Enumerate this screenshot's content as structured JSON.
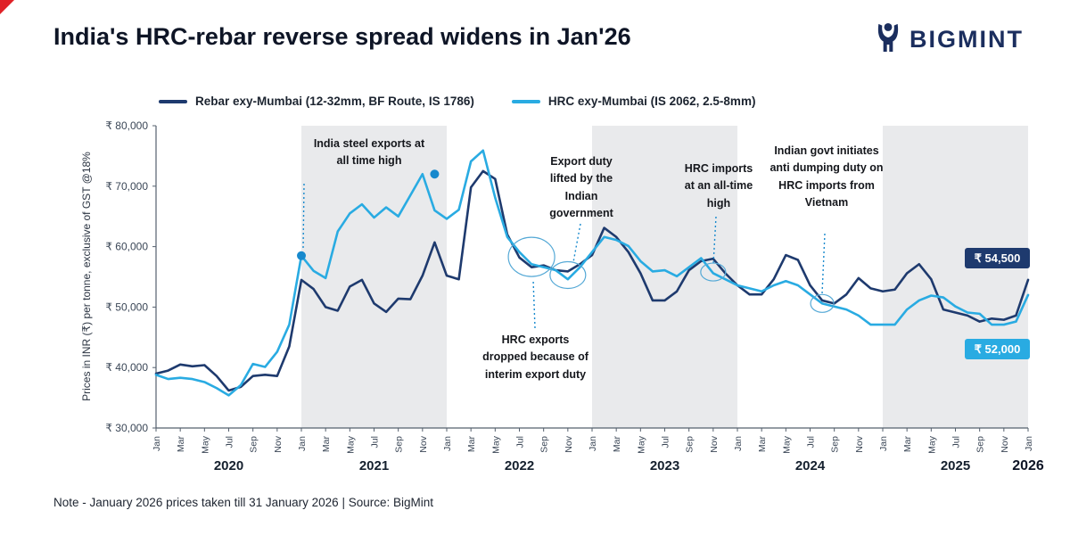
{
  "header": {
    "title": "India's HRC-rebar reverse spread widens in Jan'26",
    "logo_text": "BIGMINT"
  },
  "note": "Note - January 2026 prices taken till  31 January 2026  |  Source: BigMint",
  "colors": {
    "rebar": "#1e3a6e",
    "hrc": "#29abe2",
    "band": "#e9eaec",
    "accent_red": "#e02127",
    "dot": "#1789cd"
  },
  "chart_data": {
    "type": "line",
    "title": "India's HRC-rebar reverse spread widens in Jan'26",
    "xlabel": "",
    "ylabel": "Prices in INR (₹) per tonne, exclusive of GST @18%",
    "ylim": [
      30000,
      80000
    ],
    "x_start": "Jan 2020",
    "x_end": "Jan 2026",
    "years": [
      "2020",
      "2021",
      "2022",
      "2023",
      "2024",
      "2025",
      "2026"
    ],
    "x_tick_months": [
      "Jan",
      "Mar",
      "May",
      "Jul",
      "Sep",
      "Nov"
    ],
    "shaded_years": [
      "2021",
      "2023",
      "2025"
    ],
    "y_ticks": [
      {
        "value": 30000,
        "label": "₹ 30,000"
      },
      {
        "value": 40000,
        "label": "₹ 40,000"
      },
      {
        "value": 50000,
        "label": "₹ 50,000"
      },
      {
        "value": 60000,
        "label": "₹ 60,000"
      },
      {
        "value": 70000,
        "label": "₹ 70,000"
      },
      {
        "value": 80000,
        "label": "₹ 80,000"
      }
    ],
    "series": [
      {
        "name": "Rebar exy-Mumbai (12-32mm, BF Route, IS 1786)",
        "color": "#1e3a6e",
        "values": [
          39000,
          39500,
          40500,
          40200,
          40400,
          38600,
          36200,
          36800,
          38600,
          38800,
          38600,
          43500,
          54500,
          53000,
          50000,
          49400,
          53400,
          54500,
          50600,
          49200,
          51400,
          51300,
          55200,
          60700,
          55200,
          54600,
          69800,
          72500,
          71200,
          62000,
          58200,
          56600,
          56900,
          56100,
          55900,
          57100,
          58600,
          63100,
          61600,
          59100,
          55600,
          51100,
          51100,
          52600,
          56100,
          57600,
          58000,
          55600,
          53600,
          52100,
          52100,
          54600,
          58600,
          57800,
          53600,
          51100,
          50600,
          52100,
          54800,
          53100,
          52600,
          52900,
          55600,
          57100,
          54600,
          49600,
          49100,
          48600,
          47600,
          48100,
          47900,
          48600,
          54500
        ]
      },
      {
        "name": "HRC exy-Mumbai (IS 2062, 2.5-8mm)",
        "color": "#29abe2",
        "values": [
          38800,
          38100,
          38300,
          38100,
          37600,
          36600,
          35400,
          37100,
          40600,
          40100,
          42600,
          47100,
          58500,
          56000,
          54800,
          62500,
          65500,
          67000,
          64800,
          66500,
          65000,
          68500,
          72000,
          66000,
          64600,
          66100,
          74100,
          75900,
          68100,
          61600,
          59100,
          57100,
          56600,
          56100,
          54600,
          56600,
          59100,
          61600,
          61100,
          60100,
          57600,
          55900,
          56100,
          55100,
          56600,
          58100,
          55600,
          54600,
          53600,
          53100,
          52600,
          53600,
          54300,
          53600,
          52100,
          50600,
          50100,
          49600,
          48600,
          47100,
          47100,
          47100,
          49600,
          51100,
          51900,
          51600,
          50100,
          49100,
          48900,
          47100,
          47100,
          47600,
          52000
        ]
      }
    ],
    "end_labels": {
      "rebar": "₹ 54,500",
      "hrc": "₹ 52,000"
    },
    "annotations": [
      {
        "text": "India steel exports at all time high",
        "markers": [
          {
            "type": "dot",
            "i": 12,
            "v": 58500
          },
          {
            "type": "dot",
            "i": 23,
            "v": 72000
          }
        ]
      },
      {
        "text": "Export duty lifted by the Indian government",
        "markers": [
          {
            "type": "ellipse",
            "i": 34,
            "v": 55300,
            "rx": 20,
            "ry": 15
          }
        ]
      },
      {
        "text": "HRC imports at an all-time high",
        "markers": [
          {
            "type": "ellipse",
            "i": 46,
            "v": 55800,
            "rx": 14,
            "ry": 10
          }
        ]
      },
      {
        "text": "Indian govt initiates anti dumping duty on HRC imports from Vietnam",
        "markers": [
          {
            "type": "ellipse",
            "i": 55,
            "v": 50600,
            "rx": 13,
            "ry": 10
          }
        ]
      },
      {
        "text": "HRC exports dropped because of interim export duty",
        "markers": [
          {
            "type": "ellipse",
            "i": 31,
            "v": 58300,
            "rx": 26,
            "ry": 22
          }
        ]
      }
    ]
  }
}
